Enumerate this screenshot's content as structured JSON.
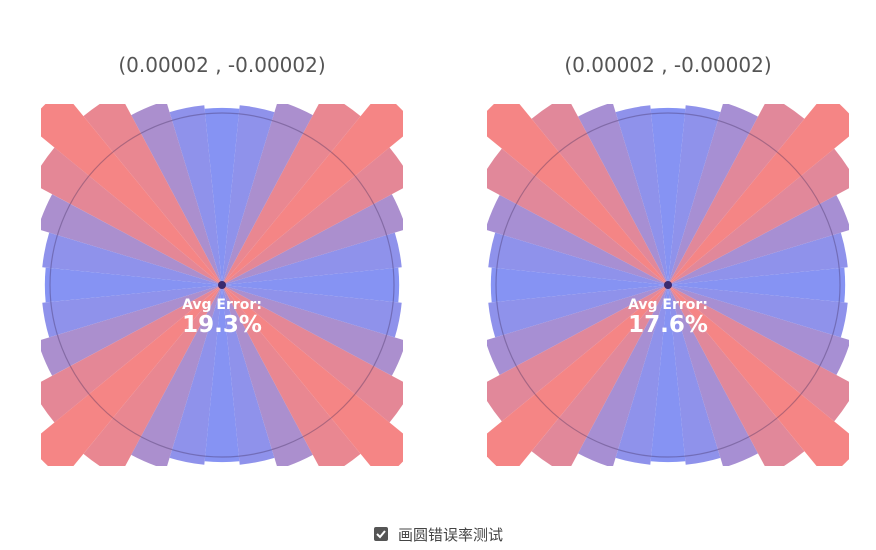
{
  "chart_data": [
    {
      "type": "polar",
      "title": "(0.00002 , -0.00002)",
      "caption": "Avg Error:",
      "value": 19.3,
      "value_label": "19.3%",
      "low_color": "#6f8cff",
      "high_color": "#f47b7b",
      "values": [
        1.03,
        1.05,
        1.12,
        1.26,
        1.46,
        1.27,
        1.12,
        1.05,
        1.03,
        1.05,
        1.12,
        1.27,
        1.47,
        1.26,
        1.12,
        1.05,
        1.03,
        1.05,
        1.12,
        1.26,
        1.46,
        1.27,
        1.12,
        1.05,
        1.03,
        1.05,
        1.12,
        1.27,
        1.47,
        1.26,
        1.12,
        1.05
      ]
    },
    {
      "type": "polar",
      "title": "(0.00002 , -0.00002)",
      "caption": "Avg Error:",
      "value": 17.6,
      "value_label": "17.6%",
      "low_color": "#6f8cff",
      "high_color": "#f47b7b",
      "values": [
        1.03,
        1.05,
        1.11,
        1.25,
        1.45,
        1.25,
        1.11,
        1.05,
        1.03,
        1.05,
        1.11,
        1.25,
        1.46,
        1.25,
        1.11,
        1.05,
        1.03,
        1.05,
        1.11,
        1.25,
        1.45,
        1.25,
        1.11,
        1.05,
        1.03,
        1.05,
        1.11,
        1.25,
        1.46,
        1.25,
        1.11,
        1.05
      ]
    }
  ],
  "controls": {
    "checkbox": {
      "label": "画圆错误率测试",
      "checked": true
    }
  }
}
